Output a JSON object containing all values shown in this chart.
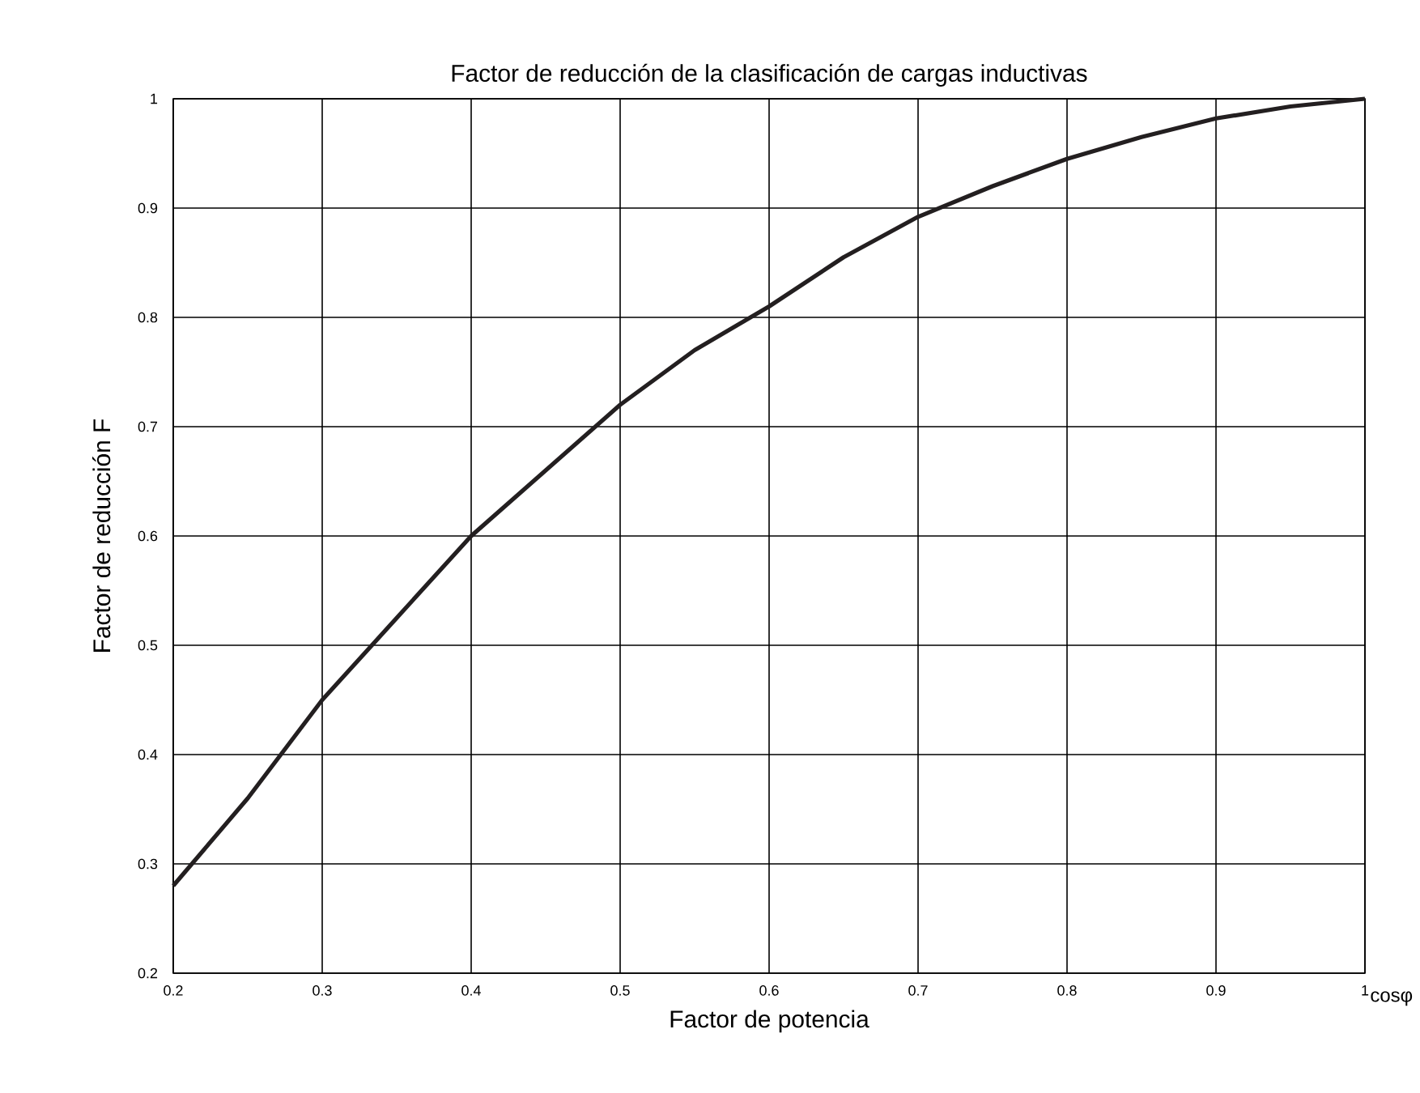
{
  "chart_data": {
    "type": "line",
    "title": "Factor de reducción de la clasificación de cargas inductivas",
    "xlabel": "Factor de potencia",
    "ylabel": "Factor de reducción F",
    "annotations": [
      "cosφ"
    ],
    "x": [
      0.2,
      0.25,
      0.3,
      0.35,
      0.4,
      0.45,
      0.5,
      0.55,
      0.6,
      0.65,
      0.7,
      0.75,
      0.8,
      0.85,
      0.9,
      0.95,
      1.0
    ],
    "series": [
      {
        "color": "#231f20",
        "values": [
          0.28,
          0.36,
          0.45,
          0.525,
          0.6,
          0.66,
          0.72,
          0.77,
          0.81,
          0.855,
          0.892,
          0.92,
          0.945,
          0.965,
          0.982,
          0.993,
          1.0
        ]
      }
    ],
    "xlim": [
      0.2,
      1
    ],
    "ylim": [
      0.2,
      1
    ],
    "xticks": [
      0.2,
      0.3,
      0.4,
      0.5,
      0.6,
      0.7,
      0.8,
      0.9,
      1
    ],
    "yticks": [
      0.2,
      0.3,
      0.4,
      0.5,
      0.6,
      0.7,
      0.8,
      0.9,
      1
    ],
    "grid": true,
    "marker": "none",
    "line_style": "solid"
  }
}
